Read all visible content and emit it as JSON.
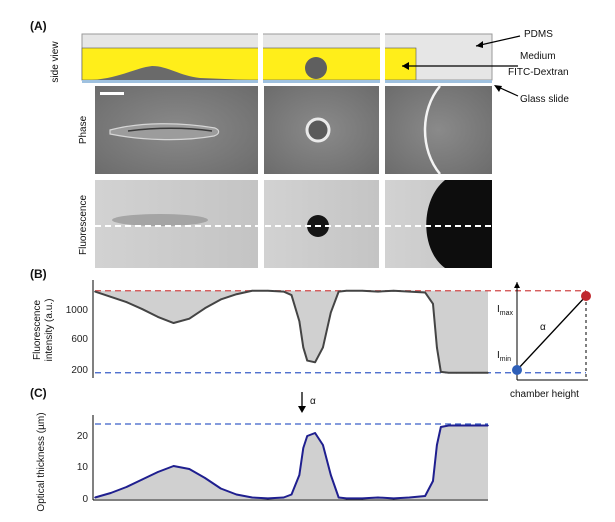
{
  "panels": {
    "A": "(A)",
    "B": "(B)",
    "C": "(C)"
  },
  "schematic": {
    "row_label": "side view",
    "pdms_label": "PDMS",
    "medium_label": "Medium",
    "fitc_label": "FITC-Dextran",
    "glass_label": "Glass slide"
  },
  "image_rows": {
    "phase_label": "Phase",
    "fluorescence_label": "Fluorescence"
  },
  "panel_B": {
    "ylabel_line1": "Fluorescence",
    "ylabel_line2": "intensity (a.u.)",
    "yticks": [
      "1000",
      "600",
      "200"
    ]
  },
  "panel_C": {
    "ylabel": "Optical thickness (µm)",
    "yticks": [
      "20",
      "10",
      "0"
    ],
    "alpha_symbol": "α"
  },
  "inset": {
    "imax_label": "I",
    "imax_sub": "max",
    "imin_label": "I",
    "imin_sub": "min",
    "alpha_label": "α",
    "xlabel": "chamber height"
  },
  "colors": {
    "medium_yellow": "#ffee1a",
    "pdms_gray": "#e6e6e6",
    "glass_blue": "#9fc1df",
    "profile_B": "#444444",
    "profile_C": "#1f1f8f",
    "max_line": "#d04a4a",
    "min_line": "#3a5fc8",
    "fill_gray": "#d0d0d0"
  },
  "chart_data": [
    {
      "type": "line",
      "panel": "B",
      "xlabel": "",
      "ylabel": "Fluorescence intensity (a.u.)",
      "ylim": [
        150,
        1250
      ],
      "x": [
        0,
        0.04,
        0.08,
        0.12,
        0.16,
        0.2,
        0.24,
        0.28,
        0.32,
        0.36,
        0.4,
        0.44,
        0.48,
        0.5,
        0.52,
        0.53,
        0.54,
        0.56,
        0.58,
        0.6,
        0.62,
        0.64,
        0.68,
        0.72,
        0.76,
        0.8,
        0.84,
        0.86,
        0.87,
        0.88,
        0.9,
        0.92,
        0.96,
        1.0
      ],
      "series": [
        {
          "values": [
            1140,
            1080,
            1020,
            940,
            850,
            780,
            830,
            950,
            1050,
            1110,
            1150,
            1150,
            1140,
            1100,
            800,
            500,
            350,
            330,
            500,
            900,
            1140,
            1150,
            1150,
            1140,
            1150,
            1140,
            1130,
            1000,
            500,
            220,
            210,
            210,
            210,
            210
          ]
        }
      ],
      "reference_lines": [
        1150,
        210
      ]
    },
    {
      "type": "line",
      "panel": "C",
      "xlabel": "",
      "ylabel": "Optical thickness (µm)",
      "ylim": [
        0,
        27
      ],
      "x": [
        0,
        0.04,
        0.08,
        0.12,
        0.16,
        0.2,
        0.24,
        0.28,
        0.32,
        0.36,
        0.4,
        0.44,
        0.48,
        0.5,
        0.52,
        0.53,
        0.54,
        0.56,
        0.58,
        0.6,
        0.62,
        0.64,
        0.68,
        0.72,
        0.76,
        0.8,
        0.84,
        0.86,
        0.87,
        0.88,
        0.9,
        0.92,
        0.96,
        1.0
      ],
      "series": [
        {
          "values": [
            0.5,
            2,
            4,
            6.5,
            9,
            11,
            10,
            7,
            3.5,
            1.5,
            0.5,
            0.2,
            0.5,
            1.5,
            8,
            17,
            21,
            22,
            18,
            8,
            0.5,
            0.2,
            0.2,
            0.5,
            0.2,
            0.5,
            1,
            6,
            18,
            24,
            24.5,
            24.5,
            24.5,
            24.5
          ]
        }
      ],
      "reference_lines": [
        25
      ]
    }
  ]
}
